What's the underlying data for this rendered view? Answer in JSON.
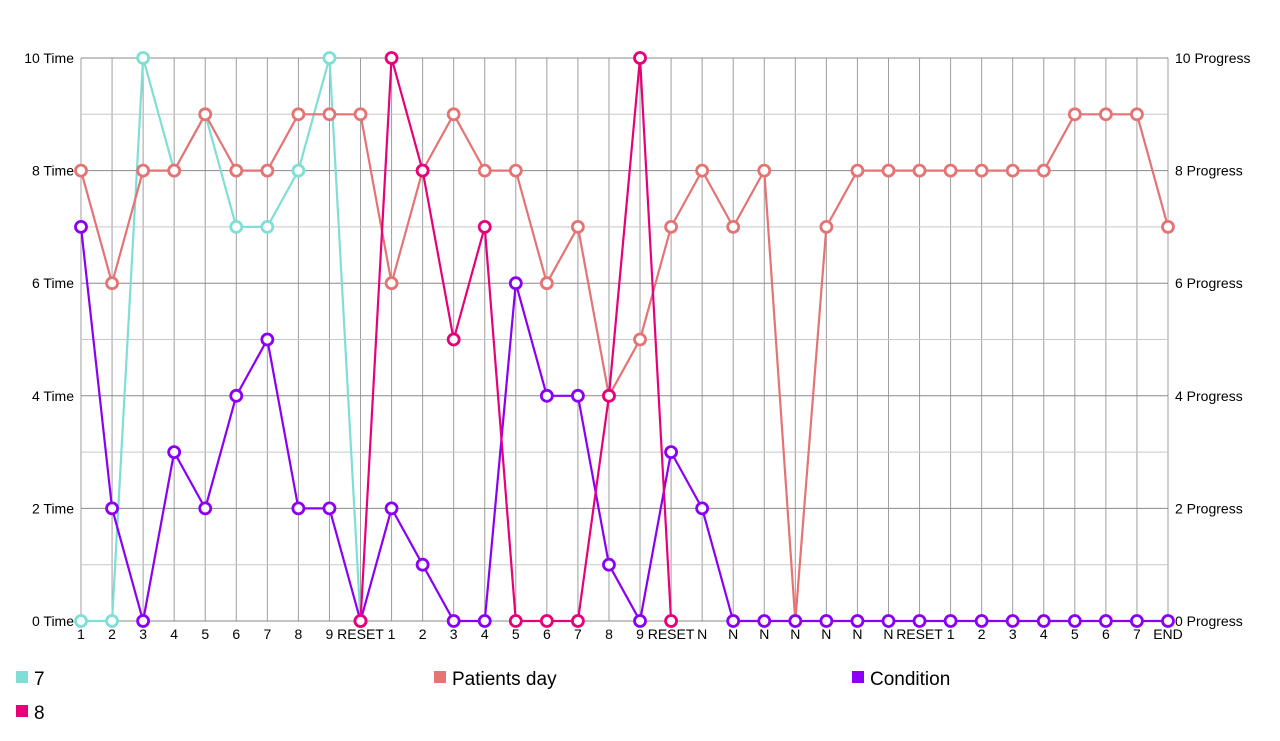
{
  "chart_data": {
    "type": "line",
    "title": "",
    "xlabel": "",
    "ylabel": "",
    "categories": [
      "1",
      "2",
      "3",
      "4",
      "5",
      "6",
      "7",
      "8",
      "9",
      "RESET",
      "1",
      "2",
      "3",
      "4",
      "5",
      "6",
      "7",
      "8",
      "9",
      "RESET",
      "N",
      "N",
      "N",
      "N",
      "N",
      "N",
      "N",
      "RESET",
      "1",
      "2",
      "3",
      "4",
      "5",
      "6",
      "7",
      "END"
    ],
    "ylim": [
      0,
      10
    ],
    "yticks": [
      0,
      2,
      4,
      6,
      8,
      10
    ],
    "ytick_labels_left": [
      "0 Time",
      "2 Time",
      "4 Time",
      "6 Time",
      "8 Time",
      "10 Time"
    ],
    "ytick_labels_right": [
      "0 Progress",
      "2 Progress",
      "4 Progress",
      "6 Progress",
      "8 Progress",
      "10 Progress"
    ],
    "grid": true,
    "legend_position": "bottom",
    "series": [
      {
        "name": "7",
        "color": "#7fded5",
        "values": [
          0,
          0,
          10,
          8,
          9,
          7,
          7,
          8,
          10,
          0,
          null,
          null,
          null,
          null,
          null,
          null,
          null,
          null,
          null,
          null,
          null,
          null,
          null,
          null,
          null,
          null,
          null,
          null,
          null,
          null,
          null,
          null,
          null,
          null,
          null,
          null
        ]
      },
      {
        "name": "Patients day",
        "color": "#e57373",
        "values": [
          8,
          6,
          8,
          8,
          9,
          8,
          8,
          9,
          9,
          9,
          6,
          8,
          9,
          8,
          8,
          6,
          7,
          4,
          5,
          7,
          8,
          7,
          8,
          0,
          7,
          8,
          8,
          8,
          8,
          8,
          8,
          8,
          9,
          9,
          9,
          7
        ]
      },
      {
        "name": "Condition",
        "color": "#8b00f5",
        "values": [
          7,
          2,
          0,
          3,
          2,
          4,
          5,
          2,
          2,
          0,
          2,
          1,
          0,
          0,
          6,
          4,
          4,
          1,
          0,
          3,
          2,
          0,
          0,
          0,
          0,
          0,
          0,
          0,
          0,
          0,
          0,
          0,
          0,
          0,
          0,
          0
        ]
      },
      {
        "name": "8",
        "color": "#e6007a",
        "values": [
          null,
          null,
          null,
          null,
          null,
          null,
          null,
          null,
          null,
          0,
          10,
          8,
          5,
          7,
          0,
          0,
          0,
          4,
          10,
          0,
          null,
          null,
          null,
          null,
          null,
          null,
          null,
          null,
          null,
          null,
          null,
          null,
          null,
          null,
          null,
          null
        ]
      }
    ]
  }
}
